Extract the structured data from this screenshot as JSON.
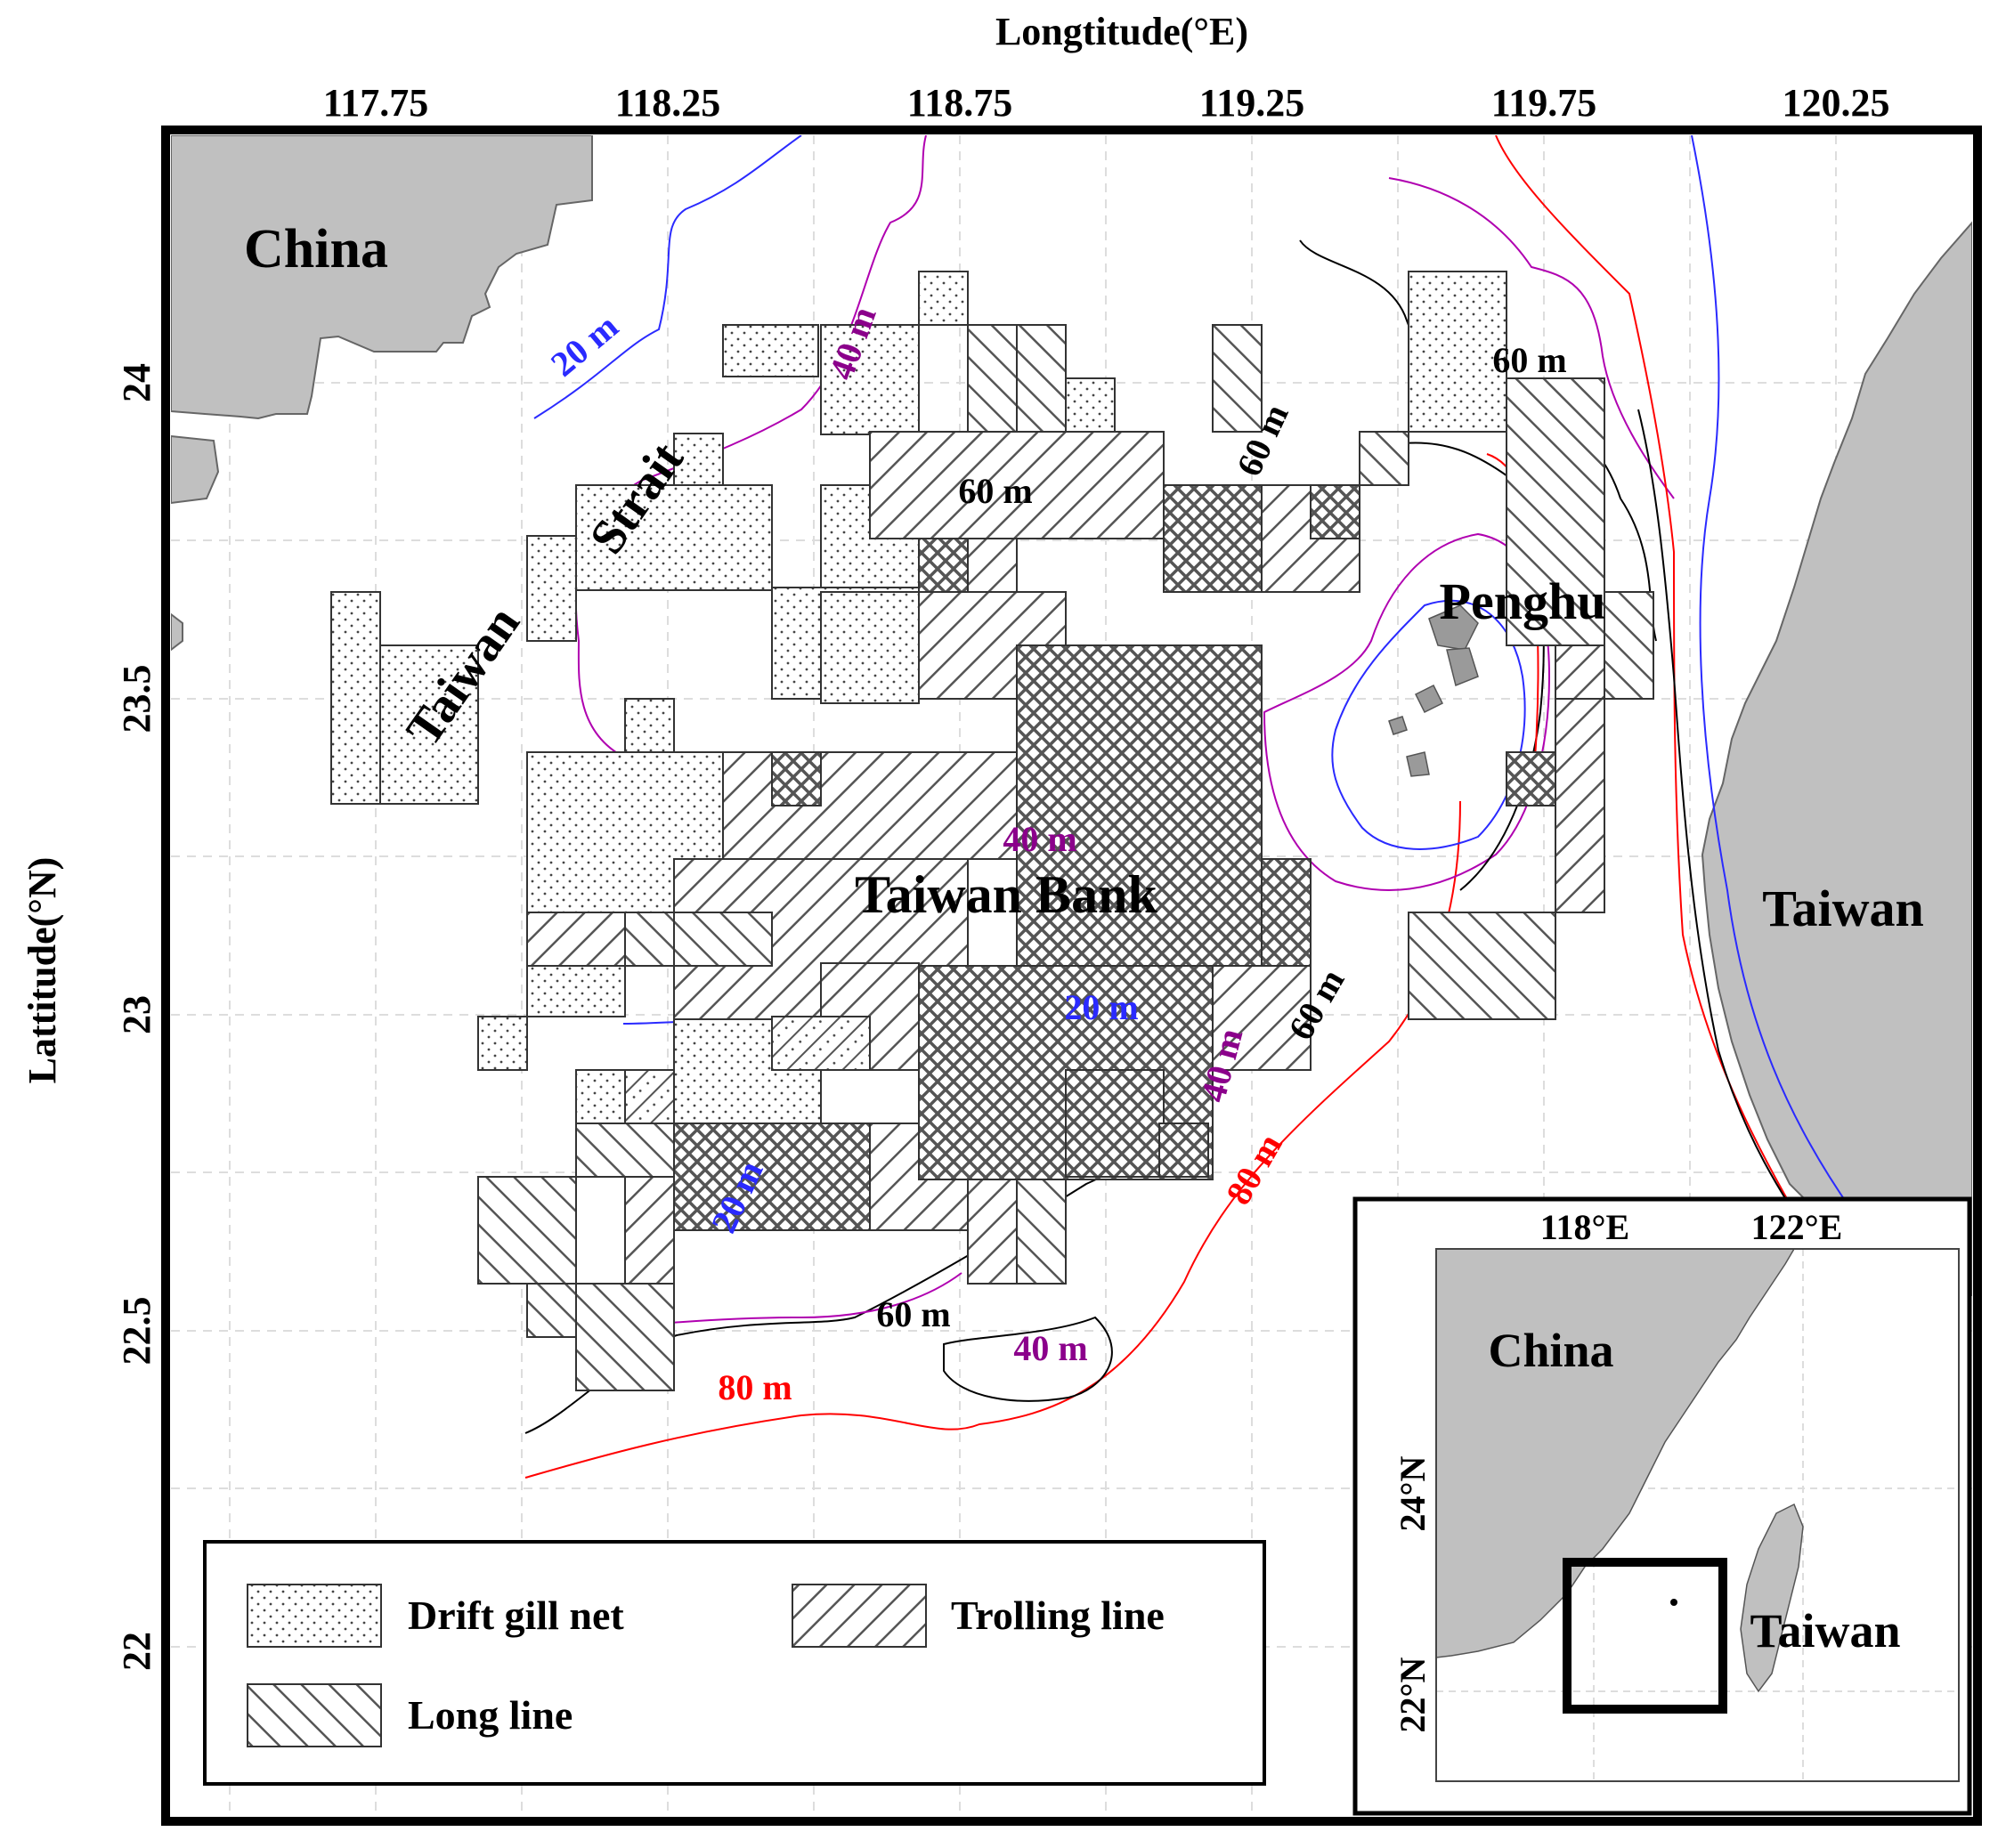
{
  "axes": {
    "x_title": "Longtitude(°E)",
    "y_title": "Lattitude(°N)",
    "x_ticks": [
      "117.75",
      "118.25",
      "118.75",
      "119.25",
      "119.75",
      "120.25"
    ],
    "y_ticks": [
      "24",
      "23.5",
      "23",
      "22.5",
      "22"
    ]
  },
  "places": {
    "china": "China",
    "taiwan_strait_1": "Taiwan",
    "taiwan_strait_2": "Strait",
    "penghu": "Penghu",
    "taiwan_bank": "Taiwan Bank",
    "taiwan": "Taiwan"
  },
  "contours": {
    "c20_a": "20 m",
    "c40_a": "40 m",
    "c60_a": "60 m",
    "c60_b": "60 m",
    "c60_c": "60 m",
    "c40_b": "40 m",
    "c20_b": "20 m",
    "c40_c": "40 m",
    "c60_d": "60 m",
    "c80_a": "80 m",
    "c20_c": "20 m",
    "c60_e": "60 m",
    "c40_d": "40 m",
    "c80_b": "80 m"
  },
  "contour_colors": {
    "d20": "#2a2aff",
    "d40": "#8b008b",
    "d60": "#000000",
    "d80": "#ff0000"
  },
  "legend": {
    "drift_gill_net": "Drift gill net",
    "trolling_line": "Trolling line",
    "long_line": "Long line"
  },
  "inset": {
    "x_ticks": [
      "118°E",
      "122°E"
    ],
    "y_ticks": [
      "24°N",
      "22°N"
    ],
    "china": "China",
    "taiwan": "Taiwan"
  },
  "colors": {
    "land": "#c0c0c0",
    "cell_stroke": "#333333"
  }
}
